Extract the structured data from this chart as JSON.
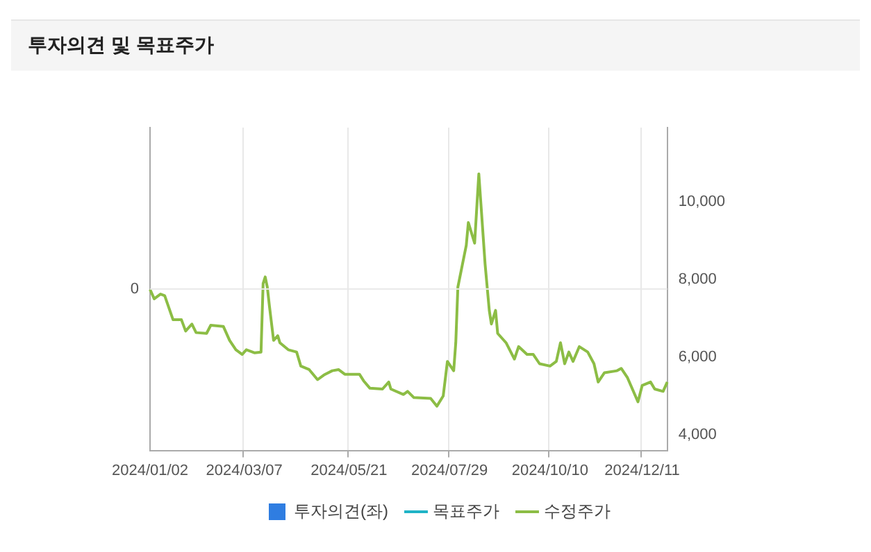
{
  "chart_data": {
    "type": "line",
    "title": "투자의견 및 목표주가",
    "categories": [
      "2024/01/02",
      null,
      null,
      null,
      null,
      null,
      null,
      null,
      null,
      null,
      null,
      null,
      null,
      null,
      null,
      null,
      null,
      null,
      null,
      null,
      null,
      null,
      null,
      null,
      null,
      null,
      null,
      null,
      null,
      null,
      null,
      null,
      null,
      null,
      null,
      null,
      null,
      null,
      null,
      null,
      null,
      null,
      null,
      null,
      null,
      "2024/03/07",
      null,
      null,
      null,
      null,
      null,
      null,
      null,
      null,
      null,
      null,
      null,
      null,
      null,
      null,
      null,
      null,
      null,
      null,
      null,
      null,
      null,
      null,
      null,
      null,
      null,
      null,
      null,
      null,
      null,
      null,
      null,
      null,
      null,
      null,
      null,
      null,
      null,
      null,
      null,
      null,
      null,
      null,
      null,
      null,
      null,
      null,
      null,
      null,
      null,
      "2024/05/21",
      null,
      null,
      null,
      null,
      null,
      null,
      null,
      null,
      null,
      null,
      null,
      null,
      null,
      null,
      null,
      null,
      null,
      null,
      null,
      null,
      null,
      null,
      null,
      null,
      null,
      null,
      null,
      null,
      null,
      null,
      null,
      null,
      null,
      null,
      null,
      null,
      null,
      null,
      null,
      null,
      null,
      null,
      null,
      null,
      null,
      null,
      null,
      "2024/07/29",
      null,
      null,
      null,
      null,
      null,
      null,
      null,
      null,
      null,
      null,
      null,
      null,
      null,
      null,
      null,
      null,
      null,
      null,
      null,
      null,
      null,
      null,
      null,
      null,
      null,
      null,
      null,
      null,
      null,
      null,
      null,
      null,
      null,
      null,
      null,
      null,
      null,
      null,
      null,
      null,
      null,
      null,
      null,
      null,
      null,
      null,
      null,
      "2024/10/10",
      null,
      null,
      null,
      null,
      null,
      null,
      null,
      null,
      null,
      null,
      null,
      null,
      null,
      null,
      null,
      null,
      null,
      null,
      null,
      null,
      null,
      null,
      null,
      null,
      null,
      null,
      null,
      null,
      null,
      null,
      null,
      null,
      null,
      null,
      null,
      null,
      null,
      null,
      null,
      null,
      null,
      null,
      null,
      "2024/12/11",
      null,
      null,
      null,
      null,
      null,
      null,
      null,
      null,
      null,
      null,
      null,
      null
    ],
    "series": [
      {
        "name": "투자의견(좌)",
        "type": "bar",
        "color": "#2f7de1",
        "values": [
          null,
          null,
          null,
          null,
          null,
          null,
          null,
          null,
          null,
          null,
          null,
          null,
          null,
          null,
          null,
          null,
          null,
          null,
          null,
          null,
          null,
          null,
          null,
          null,
          null,
          null,
          null,
          null,
          null,
          null,
          null,
          null,
          null,
          null,
          null,
          null,
          null,
          null,
          null,
          null,
          null,
          null,
          null,
          null,
          null,
          null,
          null,
          null,
          null,
          null,
          null,
          null,
          null,
          null,
          null,
          null,
          null,
          null,
          null,
          null,
          null,
          null,
          null,
          null,
          null,
          null,
          null,
          null,
          null,
          null,
          null,
          null,
          null,
          null,
          null,
          null,
          null,
          null,
          null,
          null,
          null,
          null,
          null,
          null,
          null,
          null,
          null,
          null,
          null,
          null,
          null,
          null,
          null,
          null,
          null,
          null,
          null,
          null,
          null,
          null,
          null,
          null,
          null,
          null,
          null,
          null,
          null,
          null,
          null,
          null,
          null,
          null,
          null,
          null,
          null,
          null,
          null,
          null,
          null,
          null,
          null,
          null,
          null,
          null,
          null,
          null,
          null,
          null,
          null,
          null,
          null,
          null,
          null,
          null,
          null,
          null,
          null,
          null,
          null,
          null,
          null,
          null,
          null,
          null,
          null,
          null,
          null,
          null,
          null,
          null,
          null,
          null,
          null,
          null,
          null,
          null,
          null,
          null,
          null,
          null,
          null,
          null,
          null,
          null,
          null,
          null,
          null,
          null,
          null,
          null,
          null,
          null,
          null,
          null,
          null,
          null,
          null,
          null,
          null,
          null,
          null,
          null,
          null,
          null,
          null,
          null,
          null,
          null,
          null,
          null,
          null,
          null,
          null,
          null,
          null,
          null,
          null,
          null,
          null,
          null,
          null,
          null,
          null,
          null,
          null,
          null,
          null,
          null,
          null,
          null,
          null,
          null,
          null,
          null,
          null,
          null,
          null,
          null,
          null,
          null,
          null,
          null,
          null,
          null,
          null,
          null,
          null,
          null,
          null,
          null,
          null,
          null,
          null,
          null,
          null,
          null,
          null,
          null,
          null,
          null,
          null,
          null,
          null,
          null,
          null,
          null,
          null,
          null
        ]
      },
      {
        "name": "목표주가",
        "type": "line",
        "axis": "y2",
        "color": "#1fb3c6",
        "values": [
          null,
          null,
          null,
          null,
          null,
          null,
          null,
          null,
          null,
          null,
          null,
          null,
          null,
          null,
          null,
          null,
          null,
          null,
          null,
          null,
          null,
          null,
          null,
          null,
          null,
          null,
          null,
          null,
          null,
          null,
          null,
          null,
          null,
          null,
          null,
          null,
          null,
          null,
          null,
          null,
          null,
          null,
          null,
          null,
          null,
          null,
          null,
          null,
          null,
          null,
          null,
          null,
          null,
          null,
          null,
          null,
          null,
          null,
          null,
          null,
          null,
          null,
          null,
          null,
          null,
          null,
          null,
          null,
          null,
          null,
          null,
          null,
          null,
          null,
          null,
          null,
          null,
          null,
          null,
          null,
          null,
          null,
          null,
          null,
          null,
          null,
          null,
          null,
          null,
          null,
          null,
          null,
          null,
          null,
          null,
          null,
          null,
          null,
          null,
          null,
          null,
          null,
          null,
          null,
          null,
          null,
          null,
          null,
          null,
          null,
          null,
          null,
          null,
          null,
          null,
          null,
          null,
          null,
          null,
          null,
          null,
          null,
          null,
          null,
          null,
          null,
          null,
          null,
          null,
          null,
          null,
          null,
          null,
          null,
          null,
          null,
          null,
          null,
          null,
          null,
          null,
          null,
          null,
          null,
          null,
          null,
          null,
          null,
          null,
          null,
          null,
          null,
          null,
          null,
          null,
          null,
          null,
          null,
          null,
          null,
          null,
          null,
          null,
          null,
          null,
          null,
          null,
          null,
          null,
          null,
          null,
          null,
          null,
          null,
          null,
          null,
          null,
          null,
          null,
          null,
          null,
          null,
          null,
          null,
          null,
          null,
          null,
          null,
          null,
          null,
          null,
          null,
          null,
          null,
          null,
          null,
          null,
          null,
          null,
          null,
          null,
          null,
          null,
          null,
          null,
          null,
          null,
          null,
          null,
          null,
          null,
          null,
          null,
          null,
          null,
          null,
          null,
          null,
          null,
          null,
          null,
          null,
          null,
          null,
          null,
          null,
          null,
          null,
          null,
          null,
          null,
          null,
          null,
          null,
          null,
          null,
          null,
          null,
          null,
          null,
          null,
          null,
          null,
          null,
          null,
          null,
          null,
          null
        ]
      },
      {
        "name": "수정주가",
        "axis": "y2",
        "color": "#8cbd45",
        "values": [
          7740,
          null,
          7500,
          null,
          null,
          7620,
          null,
          7580,
          null,
          null,
          null,
          6960,
          null,
          null,
          null,
          6960,
          null,
          6670,
          null,
          null,
          6850,
          null,
          6630,
          null,
          null,
          null,
          null,
          6610,
          null,
          6820,
          null,
          null,
          null,
          null,
          null,
          6790,
          null,
          null,
          6430,
          null,
          null,
          6190,
          null,
          null,
          6070,
          null,
          6190,
          null,
          null,
          null,
          6110,
          null,
          null,
          6130,
          7890,
          8060,
          7800,
          7320,
          null,
          6430,
          null,
          6550,
          6370,
          null,
          null,
          null,
          6190,
          null,
          null,
          null,
          6130,
          null,
          5770,
          null,
          null,
          null,
          5680,
          null,
          null,
          null,
          5420,
          null,
          null,
          5540,
          null,
          null,
          null,
          5650,
          null,
          null,
          5680,
          null,
          null,
          5560,
          null,
          null,
          null,
          null,
          null,
          null,
          5560,
          null,
          5390,
          null,
          null,
          5200,
          null,
          null,
          null,
          null,
          null,
          5180,
          null,
          null,
          5360,
          5180,
          null,
          null,
          null,
          null,
          null,
          5040,
          null,
          5120,
          null,
          null,
          4960,
          null,
          null,
          null,
          null,
          null,
          null,
          null,
          4940,
          null,
          null,
          4740,
          null,
          null,
          5000,
          null,
          5890,
          null,
          null,
          5650,
          6370,
          7800,
          null,
          null,
          null,
          8870,
          9460,
          null,
          null,
          8930,
          null,
          10710,
          9940,
          null,
          8390,
          null,
          7200,
          6850,
          null,
          7200,
          6610,
          null,
          null,
          null,
          6370,
          null,
          null,
          null,
          5950,
          null,
          6270,
          null,
          null,
          null,
          6070,
          null,
          null,
          6070,
          null,
          null,
          5830,
          null,
          null,
          null,
          null,
          5770,
          null,
          null,
          5890,
          null,
          6370,
          null,
          5830,
          null,
          6130,
          null,
          5890,
          null,
          null,
          6270,
          null,
          null,
          null,
          6130,
          null,
          null,
          5830,
          null,
          5360,
          null,
          null,
          5600,
          null,
          null,
          null,
          null,
          null,
          5650,
          null,
          5710,
          null,
          null,
          5470,
          null,
          null,
          null,
          null,
          4850,
          null,
          5270,
          null,
          null,
          null,
          5360,
          null,
          5180,
          null,
          null,
          null,
          5120,
          null,
          5360
        ]
      }
    ],
    "annotations": [
      "0"
    ],
    "y2lim": [
      3600,
      11900
    ],
    "y2ticks": [
      {
        "value": 4000,
        "label": "4,000"
      },
      {
        "value": 6000,
        "label": "6,000"
      },
      {
        "value": 8000,
        "label": "8,000"
      },
      {
        "value": 10000,
        "label": "10,000"
      }
    ],
    "grid": true,
    "legend": "bottom"
  }
}
